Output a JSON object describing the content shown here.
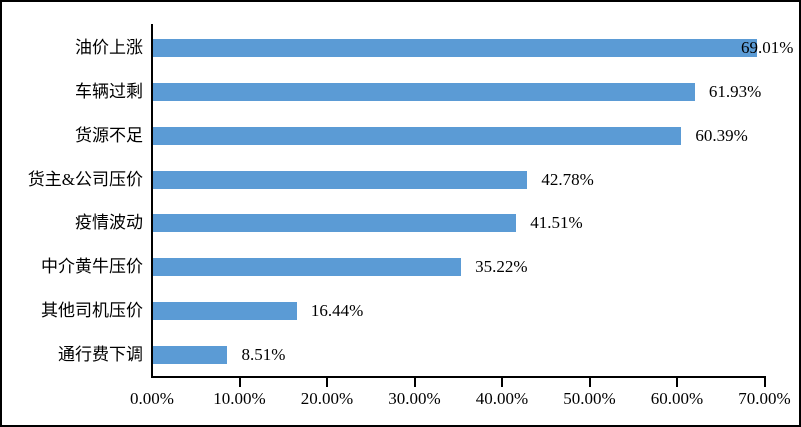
{
  "chart_data": {
    "type": "bar",
    "orientation": "horizontal",
    "categories": [
      "油价上涨",
      "车辆过剩",
      "货源不足",
      "货主&公司压价",
      "疫情波动",
      "中介黄牛压价",
      "其他司机压价",
      "通行费下调"
    ],
    "values": [
      69.01,
      61.93,
      60.39,
      42.78,
      41.51,
      35.22,
      16.44,
      8.51
    ],
    "value_labels": [
      "69.01%",
      "61.93%",
      "60.39%",
      "42.78%",
      "41.51%",
      "35.22%",
      "16.44%",
      "8.51%"
    ],
    "title": "",
    "xlabel": "",
    "ylabel": "",
    "xlim": [
      0,
      70
    ],
    "x_ticks": [
      0,
      10,
      20,
      30,
      40,
      50,
      60,
      70
    ],
    "x_tick_labels": [
      "0.00%",
      "10.00%",
      "20.00%",
      "30.00%",
      "40.00%",
      "50.00%",
      "60.00%",
      "70.00%"
    ],
    "grid": false,
    "legend": false,
    "colors": {
      "bar": "#5B9BD5",
      "axis": "#000000",
      "text": "#000000",
      "frame_border": "#000000",
      "background": "#ffffff"
    }
  }
}
